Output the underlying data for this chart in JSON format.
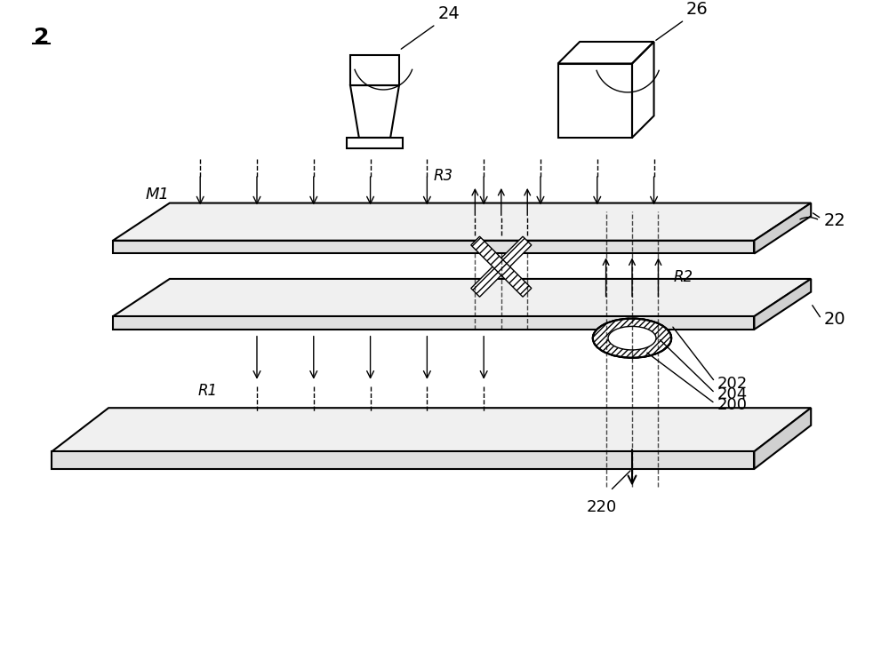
{
  "bg_color": "#ffffff",
  "line_color": "#000000",
  "gray_color": "#888888",
  "light_gray": "#cccccc",
  "hatch_color": "#555555",
  "fig_label": "2",
  "label_24": "24",
  "label_26": "26",
  "label_22": "22",
  "label_20": "20",
  "label_M1": "M1",
  "label_R1": "R1",
  "label_R2": "R2",
  "label_R3": "R3",
  "label_200": "200",
  "label_202": "202",
  "label_204": "204",
  "label_220": "220"
}
